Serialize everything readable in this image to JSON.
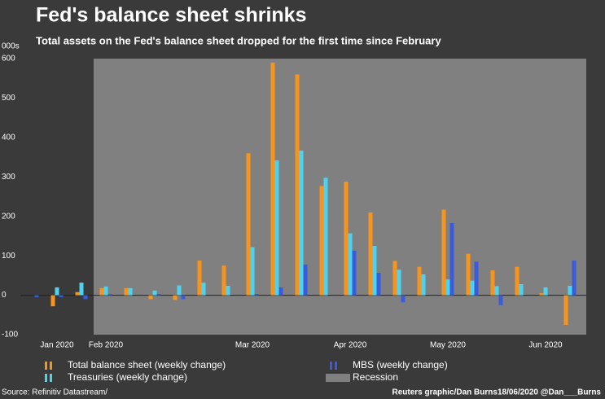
{
  "chart_data": {
    "type": "bar",
    "title": "Fed's balance sheet shrinks",
    "subtitle": "Total assets on the Fed's balance sheet dropped for the first time since February",
    "y_label": "000s",
    "source": "Source: Refinitiv Datastream/",
    "credit": "Reuters graphic/Dan Burns18/06/2020 @Dan___Burns",
    "categories": [
      null,
      "Jan 2020",
      null,
      "Feb 2020",
      null,
      null,
      null,
      null,
      null,
      "Mar 2020",
      null,
      null,
      null,
      "Apr 2020",
      null,
      null,
      null,
      "May 2020",
      null,
      null,
      null,
      "Jun 2020",
      null
    ],
    "series": [
      {
        "name": "Total balance sheet (weekly change)",
        "color": "#f7941d",
        "values": [
          0,
          -28,
          8,
          18,
          18,
          -10,
          -12,
          88,
          75,
          360,
          590,
          560,
          277,
          288,
          210,
          87,
          72,
          217,
          105,
          63,
          72,
          5,
          -75
        ]
      },
      {
        "name": "Treasuries (weekly change)",
        "color": "#4dd2f0",
        "values": [
          0,
          20,
          32,
          22,
          18,
          12,
          25,
          32,
          24,
          122,
          342,
          367,
          298,
          157,
          125,
          65,
          53,
          40,
          37,
          23,
          28,
          20,
          24
        ]
      },
      {
        "name": "MBS (weekly change)",
        "color": "#3b5bdb",
        "values": [
          -5,
          -5,
          -10,
          3,
          0,
          3,
          -10,
          0,
          0,
          3,
          20,
          78,
          0,
          113,
          57,
          -18,
          0,
          183,
          85,
          -25,
          0,
          0,
          88
        ]
      }
    ],
    "recession": {
      "name": "Recession",
      "color": "#808080",
      "from": "Feb 2020"
    },
    "ylim": [
      -100,
      600
    ],
    "yticks": [
      -100,
      0,
      100,
      200,
      300,
      400,
      500,
      600
    ]
  }
}
